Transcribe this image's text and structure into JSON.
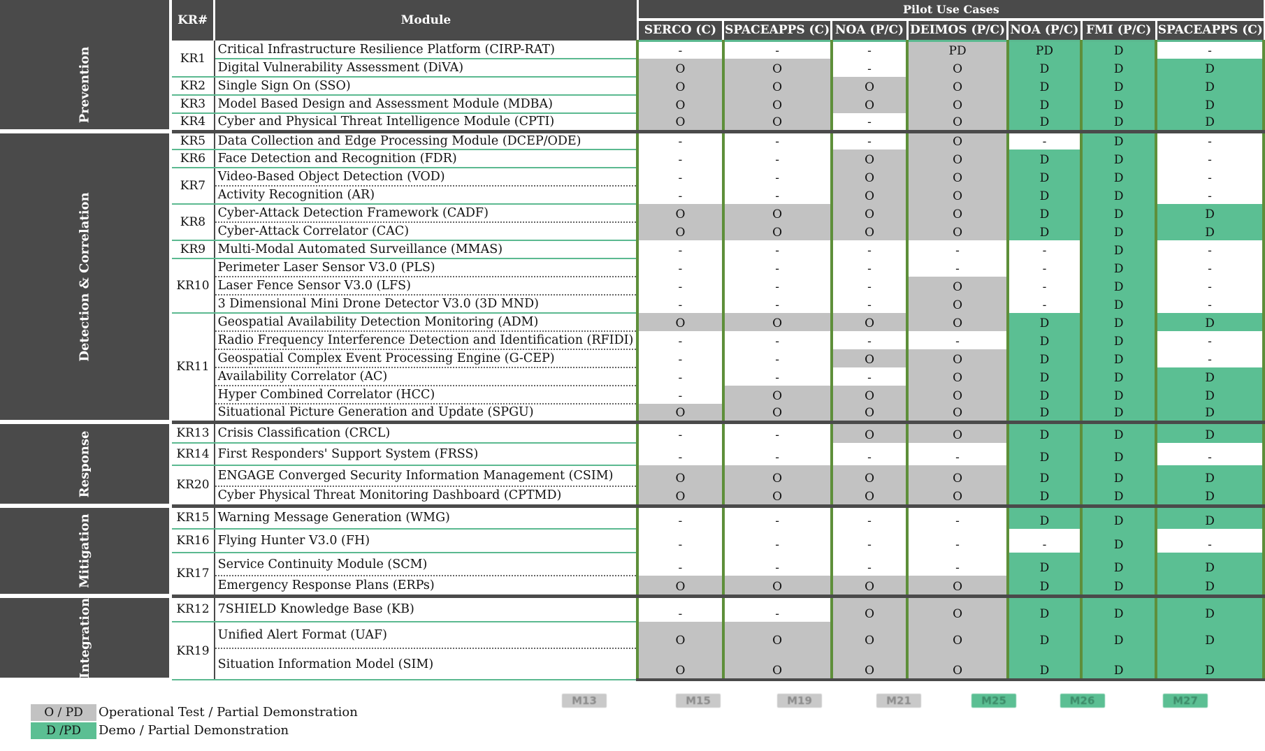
{
  "header": {
    "kr_label": "KR#",
    "module_label": "Module",
    "pilot_label": "Pilot Use Cases",
    "columns": [
      "SERCO (C)",
      "SPACEAPPS (C)",
      "NOA (P/C)",
      "DEIMOS (P/C)",
      "NOA (P/C)",
      "FMI (P/C)",
      "SPACEAPPS (C)"
    ]
  },
  "categories": [
    "Prevention",
    "Detection & Correlation",
    "Response",
    "Mitigation",
    "Integration"
  ],
  "rows": [
    {
      "kr": "KR1",
      "module": "Critical Infrastructure Resilience Platform (CIRP-RAT)",
      "vals": [
        "-",
        "-",
        "-",
        "PD",
        "PD",
        "D",
        "-"
      ]
    },
    {
      "kr": "",
      "module": "Digital Vulnerability Assessment (DiVA)",
      "vals": [
        "O",
        "O",
        "-",
        "O",
        "D",
        "D",
        "D"
      ]
    },
    {
      "kr": "KR2",
      "module": "Single Sign On (SSO)",
      "vals": [
        "O",
        "O",
        "O",
        "O",
        "D",
        "D",
        "D"
      ]
    },
    {
      "kr": "KR3",
      "module": "Model Based Design and Assessment Module (MDBA)",
      "vals": [
        "O",
        "O",
        "O",
        "O",
        "D",
        "D",
        "D"
      ]
    },
    {
      "kr": "KR4",
      "module": "Cyber and Physical Threat Intelligence Module (CPTI)",
      "vals": [
        "O",
        "O",
        "-",
        "O",
        "D",
        "D",
        "D"
      ]
    },
    {
      "kr": "KR5",
      "module": "Data Collection and Edge Processing Module (DCEP/ODE)",
      "vals": [
        "-",
        "-",
        "-",
        "O",
        "-",
        "D",
        "-"
      ]
    },
    {
      "kr": "KR6",
      "module": "Face Detection and Recognition (FDR)",
      "vals": [
        "-",
        "-",
        "O",
        "O",
        "D",
        "D",
        "-"
      ]
    },
    {
      "kr": "KR7",
      "module": "Video-Based Object Detection (VOD)",
      "vals": [
        "-",
        "-",
        "O",
        "O",
        "D",
        "D",
        "-"
      ]
    },
    {
      "kr": "",
      "module": "Activity Recognition (AR)",
      "vals": [
        "-",
        "-",
        "O",
        "O",
        "D",
        "D",
        "-"
      ]
    },
    {
      "kr": "KR8",
      "module": "Cyber-Attack Detection Framework (CADF)",
      "vals": [
        "O",
        "O",
        "O",
        "O",
        "D",
        "D",
        "D"
      ]
    },
    {
      "kr": "",
      "module": "Cyber-Attack Correlator (CAC)",
      "vals": [
        "O",
        "O",
        "O",
        "O",
        "D",
        "D",
        "D"
      ]
    },
    {
      "kr": "KR9",
      "module": "Multi-Modal Automated Surveillance (MMAS)",
      "vals": [
        "-",
        "-",
        "-",
        "-",
        "-",
        "D",
        "-"
      ]
    },
    {
      "kr": "KR10",
      "module": "Perimeter Laser Sensor V3.0 (PLS)",
      "vals": [
        "-",
        "-",
        "-",
        "-",
        "-",
        "D",
        "-"
      ]
    },
    {
      "kr": "",
      "module": "Laser Fence Sensor V3.0 (LFS)",
      "vals": [
        "-",
        "-",
        "-",
        "O",
        "-",
        "D",
        "-"
      ]
    },
    {
      "kr": "",
      "module": "3 Dimensional Mini Drone Detector V3.0 (3D MND)",
      "vals": [
        "-",
        "-",
        "-",
        "O",
        "-",
        "D",
        "-"
      ]
    },
    {
      "kr": "KR11",
      "module": "Geospatial Availability Detection Monitoring (ADM)",
      "vals": [
        "O",
        "O",
        "O",
        "O",
        "D",
        "D",
        "D"
      ]
    },
    {
      "kr": "",
      "module": "Radio Frequency Interference Detection and Identification (RFIDI)",
      "vals": [
        "-",
        "-",
        "-",
        "-",
        "D",
        "D",
        "-"
      ]
    },
    {
      "kr": "",
      "module": "Geospatial Complex Event Processing Engine (G-CEP)",
      "vals": [
        "-",
        "-",
        "O",
        "O",
        "D",
        "D",
        "-"
      ]
    },
    {
      "kr": "",
      "module": "Availability Correlator (AC)",
      "vals": [
        "-",
        "-",
        "-",
        "O",
        "D",
        "D",
        "D"
      ]
    },
    {
      "kr": "",
      "module": "Hyper Combined Correlator (HCC)",
      "vals": [
        "-",
        "O",
        "O",
        "O",
        "D",
        "D",
        "D"
      ]
    },
    {
      "kr": "",
      "module": "Situational Picture Generation and Update (SPGU)",
      "vals": [
        "O",
        "O",
        "O",
        "O",
        "D",
        "D",
        "D"
      ]
    },
    {
      "kr": "KR13",
      "module": "Crisis Classification (CRCL)",
      "vals": [
        "-",
        "-",
        "O",
        "O",
        "D",
        "D",
        "D"
      ]
    },
    {
      "kr": "KR14",
      "module": "First Responders' Support System (FRSS)",
      "vals": [
        "-",
        "-",
        "-",
        "-",
        "D",
        "D",
        "-"
      ]
    },
    {
      "kr": "KR20",
      "module": "ENGAGE Converged Security Information Management (CSIM)",
      "vals": [
        "O",
        "O",
        "O",
        "O",
        "D",
        "D",
        "D"
      ]
    },
    {
      "kr": "",
      "module": "Cyber Physical Threat Monitoring Dashboard (CPTMD)",
      "vals": [
        "O",
        "O",
        "O",
        "O",
        "D",
        "D",
        "D"
      ]
    },
    {
      "kr": "KR15",
      "module": "Warning Message Generation (WMG)",
      "vals": [
        "-",
        "-",
        "-",
        "-",
        "D",
        "D",
        "D"
      ]
    },
    {
      "kr": "KR16",
      "module": "Flying Hunter V3.0 (FH)",
      "vals": [
        "-",
        "-",
        "-",
        "-",
        "-",
        "D",
        "-"
      ]
    },
    {
      "kr": "KR17",
      "module": "Service Continuity Module (SCM)",
      "vals": [
        "-",
        "-",
        "-",
        "-",
        "D",
        "D",
        "D"
      ]
    },
    {
      "kr": "",
      "module": "Emergency Response Plans (ERPs)",
      "vals": [
        "O",
        "O",
        "O",
        "O",
        "D",
        "D",
        "D"
      ]
    },
    {
      "kr": "KR12",
      "module": "7SHIELD Knowledge Base (KB)",
      "vals": [
        "-",
        "-",
        "O",
        "O",
        "D",
        "D",
        "D"
      ]
    },
    {
      "kr": "KR19",
      "module": "Unified Alert Format (UAF)",
      "vals": [
        "O",
        "O",
        "O",
        "O",
        "D",
        "D",
        "D"
      ]
    },
    {
      "kr": "",
      "module": "Situation Information Model (SIM)",
      "vals": [
        "O",
        "O",
        "O",
        "O",
        "D",
        "D",
        "D"
      ]
    }
  ],
  "milestones": [
    "M13",
    "M15",
    "M19",
    "M21",
    "M25",
    "M26",
    "M27"
  ],
  "legend": [
    {
      "code": "O / PD",
      "text": "Operational Test  / Partial Demonstration"
    },
    {
      "code": "D /PD",
      "text": "Demo / Partial Demonstration"
    }
  ],
  "colors": {
    "header_bg": "#4a4a4a",
    "gray_cell": "#c2c2c2",
    "teal_cell": "#5bbf93",
    "green_border": "#5e8f3a"
  }
}
